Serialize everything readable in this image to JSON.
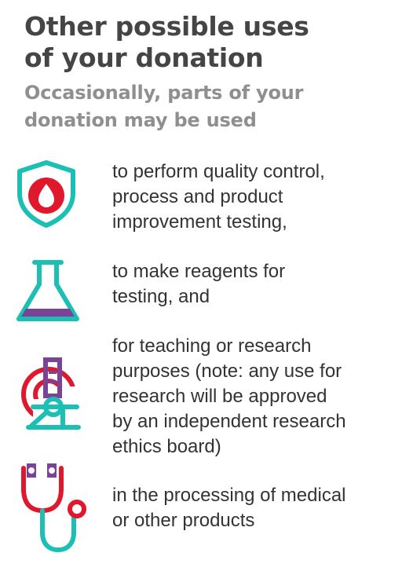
{
  "heading": "Other possible uses\nof your donation",
  "subheading": "Occasionally, parts of your\ndonation may be used",
  "colors": {
    "heading": "#454545",
    "subheading": "#8f8f8f",
    "text": "#333333",
    "teal": "#1bbfb3",
    "red": "#e0182d",
    "purple": "#7b4397"
  },
  "items": [
    {
      "icon": "shield-blood-drop-icon",
      "text": "to perform quality control,\nprocess and product\nimprovement testing,"
    },
    {
      "icon": "flask-icon",
      "text": "to make reagents for\ntesting, and"
    },
    {
      "icon": "microscope-icon",
      "text": "for teaching or research\npurposes (note: any use for\nresearch will be approved\nby an independent research\nethics board)"
    },
    {
      "icon": "stethoscope-icon",
      "text": "in the processing of medical\nor other products"
    }
  ]
}
